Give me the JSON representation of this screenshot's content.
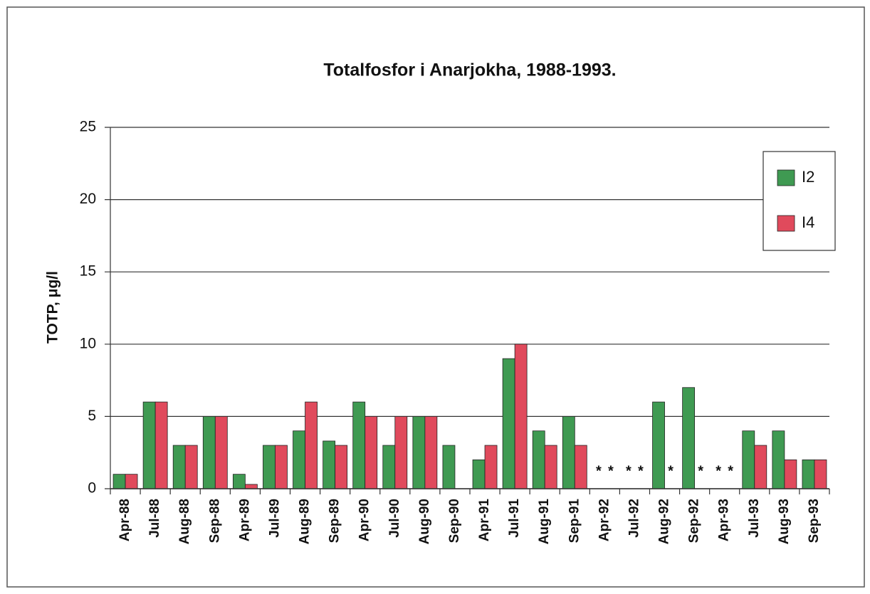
{
  "chart_data": {
    "type": "bar",
    "title": "Totalfosfor i Anarjokha, 1988-1993.",
    "y_label": "TOTP, μg/l",
    "categories": [
      "Apr-88",
      "Jul-88",
      "Aug-88",
      "Sep-88",
      "Apr-89",
      "Jul-89",
      "Aug-89",
      "Sep-89",
      "Apr-90",
      "Jul-90",
      "Aug-90",
      "Sep-90",
      "Apr-91",
      "Jul-91",
      "Aug-91",
      "Sep-91",
      "Apr-92",
      "Jul-92",
      "Aug-92",
      "Sep-92",
      "Apr-93",
      "Jul-93",
      "Aug-93",
      "Sep-93"
    ],
    "series": [
      {
        "name": "I2",
        "color": "#3f9a52",
        "values": [
          1,
          6,
          3,
          5,
          1,
          3,
          4,
          3.3,
          6,
          3,
          5,
          3,
          2,
          9,
          4,
          5,
          null,
          null,
          6,
          7,
          null,
          4,
          4,
          2
        ],
        "markers": [
          null,
          null,
          null,
          null,
          null,
          null,
          null,
          null,
          null,
          null,
          null,
          null,
          null,
          null,
          null,
          null,
          "*",
          "*",
          null,
          null,
          "*",
          null,
          null,
          null
        ]
      },
      {
        "name": "I4",
        "color": "#e04a5c",
        "values": [
          1,
          6,
          3,
          5,
          0.3,
          3,
          6,
          3,
          5,
          5,
          5,
          null,
          3,
          10,
          3,
          3,
          null,
          null,
          null,
          null,
          null,
          3,
          2,
          2
        ],
        "markers": [
          null,
          null,
          null,
          null,
          null,
          null,
          null,
          null,
          null,
          null,
          null,
          null,
          null,
          null,
          null,
          null,
          "*",
          "*",
          "*",
          "*",
          "*",
          null,
          null,
          null
        ]
      }
    ],
    "ylim": [
      0,
      25
    ],
    "yticks": [
      0,
      5,
      10,
      15,
      20,
      25
    ],
    "grid": true,
    "legend": "upper right"
  }
}
